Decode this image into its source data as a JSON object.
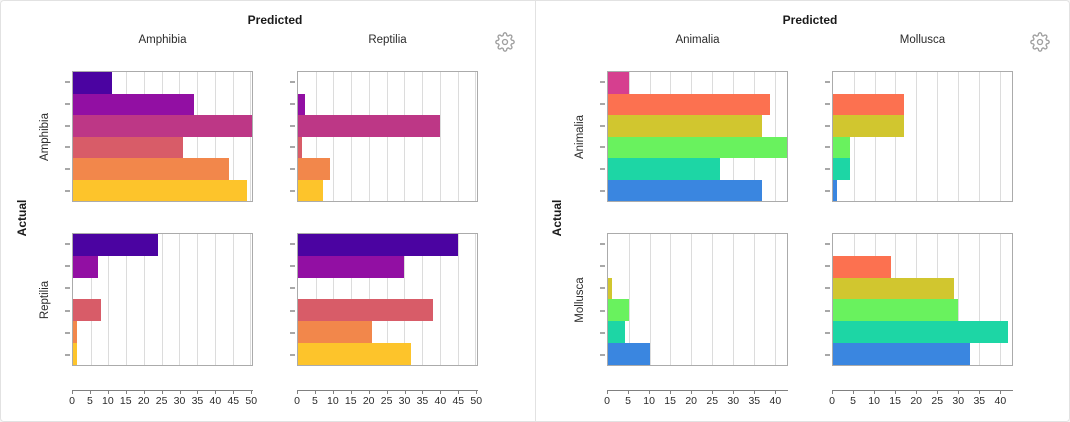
{
  "chart_data": [
    {
      "type": "bar",
      "orientation": "horizontal",
      "col_axis_title": "Predicted",
      "row_axis_title": "Actual",
      "columns": [
        "Amphibia",
        "Reptilia"
      ],
      "rows": [
        "Amphibia",
        "Reptilia"
      ],
      "x_ticks": [
        0,
        5,
        10,
        15,
        20,
        25,
        30,
        35,
        40,
        45,
        50
      ],
      "x_plot_max": 50.5,
      "grid": true,
      "legend": "none",
      "bar_colors": [
        "#4b03a1",
        "#920fa3",
        "#bd3786",
        "#d85c68",
        "#f2874b",
        "#fdc42b"
      ],
      "cells": [
        {
          "row": "Amphibia",
          "col": "Amphibia",
          "values": [
            11,
            34,
            51,
            31,
            44,
            49
          ]
        },
        {
          "row": "Amphibia",
          "col": "Reptilia",
          "values": [
            0,
            2,
            40,
            1,
            9,
            7
          ]
        },
        {
          "row": "Reptilia",
          "col": "Amphibia",
          "values": [
            24,
            7,
            0,
            8,
            1,
            1
          ]
        },
        {
          "row": "Reptilia",
          "col": "Reptilia",
          "values": [
            45,
            30,
            0,
            38,
            21,
            32
          ]
        }
      ]
    },
    {
      "type": "bar",
      "orientation": "horizontal",
      "col_axis_title": "Predicted",
      "row_axis_title": "Actual",
      "columns": [
        "Animalia",
        "Mollusca"
      ],
      "rows": [
        "Animalia",
        "Mollusca"
      ],
      "x_ticks": [
        0,
        5,
        10,
        15,
        20,
        25,
        30,
        35,
        40
      ],
      "x_plot_max": 43,
      "grid": true,
      "legend": "none",
      "bar_colors": [
        "#d63f8f",
        "#fc7150",
        "#d1c62f",
        "#69f25e",
        "#1dd6a5",
        "#3a86e0"
      ],
      "cells": [
        {
          "row": "Animalia",
          "col": "Animalia",
          "values": [
            5,
            39,
            37,
            43,
            27,
            37
          ]
        },
        {
          "row": "Animalia",
          "col": "Mollusca",
          "values": [
            0,
            17,
            17,
            4,
            4,
            1
          ]
        },
        {
          "row": "Mollusca",
          "col": "Animalia",
          "values": [
            0,
            0,
            1,
            5,
            4,
            10
          ]
        },
        {
          "row": "Mollusca",
          "col": "Mollusca",
          "values": [
            0,
            14,
            29,
            30,
            42,
            33
          ]
        }
      ]
    }
  ],
  "icons": {
    "settings": "gear-icon"
  }
}
